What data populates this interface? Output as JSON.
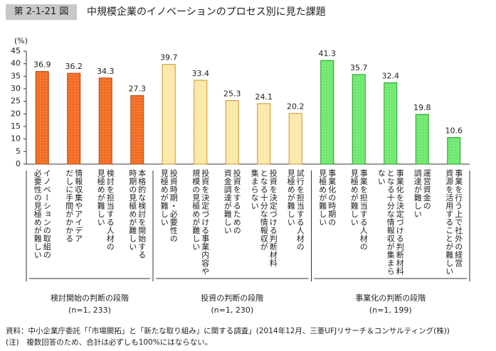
{
  "header": {
    "figure": "第 2-1-21 図",
    "title": "中規模企業のイノベーションのプロセス別に見た課題"
  },
  "chart_data": {
    "type": "bar",
    "y_unit": "(%)",
    "ylim": [
      0,
      45
    ],
    "yticks": [
      0,
      5,
      10,
      15,
      20,
      25,
      30,
      35,
      40,
      45
    ],
    "groups": [
      {
        "name": "検討開始の判断の段階",
        "n": "(n=1, 233)",
        "color": "#f26b21",
        "edge": "#b8420b",
        "categories": [
          "イノベーションの取組の\n必要性の見極めが難しい",
          "情報収集やアイデア\nだしに手間がかかる",
          "検討を担当する人材の\n見極めが難しい",
          "本格的な検討を開始する\n時期の見極めが難しい"
        ],
        "values": [
          36.9,
          36.2,
          34.3,
          27.3
        ]
      },
      {
        "name": "投資の判断の段階",
        "n": "(n=1, 230)",
        "color": "#fde8a8",
        "edge": "#c9962a",
        "categories": [
          "投資時期・必要性の\n見極めが難しい",
          "投資を決定づける事業内容や\n規模の見極めが難しい",
          "投資をするための\n資金調達が難しい",
          "投資を決定づける判断材料\nとなる十分な情報収が\n集まらない",
          "試行を担当する人材の\n見極めが難しい"
        ],
        "values": [
          39.7,
          33.4,
          25.3,
          24.1,
          20.2
        ]
      },
      {
        "name": "事業化の判断の段階",
        "n": "(n=1, 199)",
        "color": "#6ee86e",
        "edge": "#239b23",
        "categories": [
          "事業化の時期の\n見極めが難しい",
          "事業を担当する人材の\n見極めが難しい",
          "事業化を決定づける判断材料\nとなる十分な情報収が集まら\nない",
          "運営資金の\n調達が難しい",
          "事業を行う上で社外の経営\n資源を活用することが難しい"
        ],
        "values": [
          41.3,
          35.7,
          32.4,
          19.8,
          10.6
        ]
      }
    ]
  },
  "footer": {
    "source": "資料：中小企業庁委託「「市場開拓」と「新たな取り組み」に関する調査」(2014年12月、三菱UFJリサーチ＆コンサルティング(株))",
    "note": "(注)　複数回答のため、合計は必ずしも100%にはならない。"
  }
}
